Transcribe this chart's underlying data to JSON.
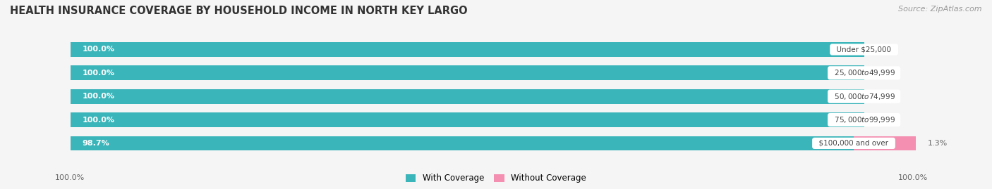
{
  "title": "HEALTH INSURANCE COVERAGE BY HOUSEHOLD INCOME IN NORTH KEY LARGO",
  "source": "Source: ZipAtlas.com",
  "categories": [
    "Under $25,000",
    "$25,000 to $49,999",
    "$50,000 to $74,999",
    "$75,000 to $99,999",
    "$100,000 and over"
  ],
  "with_coverage": [
    100.0,
    100.0,
    100.0,
    100.0,
    98.7
  ],
  "without_coverage": [
    0.0,
    0.0,
    0.0,
    0.0,
    1.3
  ],
  "color_with": "#3ab5ba",
  "color_without": "#f48fb1",
  "color_label_bg": "#ffffff",
  "bar_height": 0.62,
  "background_color": "#f5f5f5",
  "bar_background": "#e0e0e0",
  "legend_with": "With Coverage",
  "legend_without": "Without Coverage",
  "text_color_with": "#ffffff",
  "text_color_pct": "#666666",
  "title_color": "#333333",
  "source_color": "#999999"
}
